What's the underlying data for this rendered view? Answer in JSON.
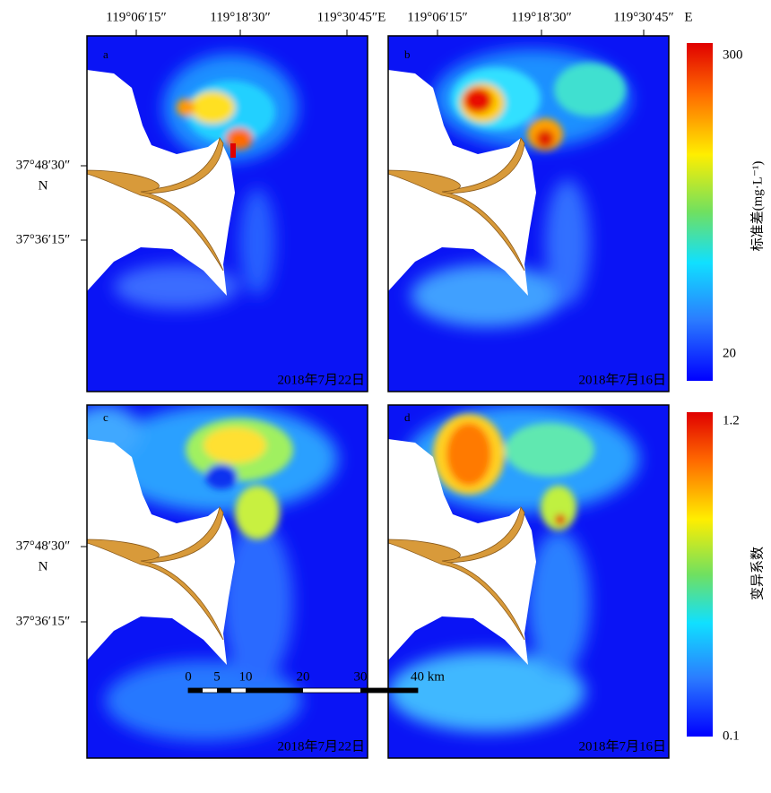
{
  "top_axis": {
    "left": [
      "119°06′15″",
      "119°18′30″",
      "119°30′45″E"
    ],
    "right": [
      "119°06′15″",
      "119°18′30″",
      "119°30′45″",
      "E"
    ]
  },
  "left_axis": [
    {
      "lat_north": "37°48′30″",
      "hemisphere": "N",
      "lat_south": "37°36′15″"
    },
    {
      "lat_north": "37°48′30″",
      "hemisphere": "N",
      "lat_south": "37°36′15″"
    }
  ],
  "panels": [
    {
      "letter": "a",
      "date": "2018年7月22日"
    },
    {
      "letter": "b",
      "date": "2018年7月16日"
    },
    {
      "letter": "c",
      "date": "2018年7月22日"
    },
    {
      "letter": "d",
      "date": "2018年7月16日"
    }
  ],
  "colorbars": [
    {
      "max": "300",
      "min": "20",
      "label": "标准差(mg·L⁻¹)"
    },
    {
      "max": "1.2",
      "min": "0.1",
      "label": "变异系数"
    }
  ],
  "scale_bar": {
    "labels": [
      "0",
      "5",
      "10",
      "20",
      "30",
      "40 km"
    ]
  }
}
